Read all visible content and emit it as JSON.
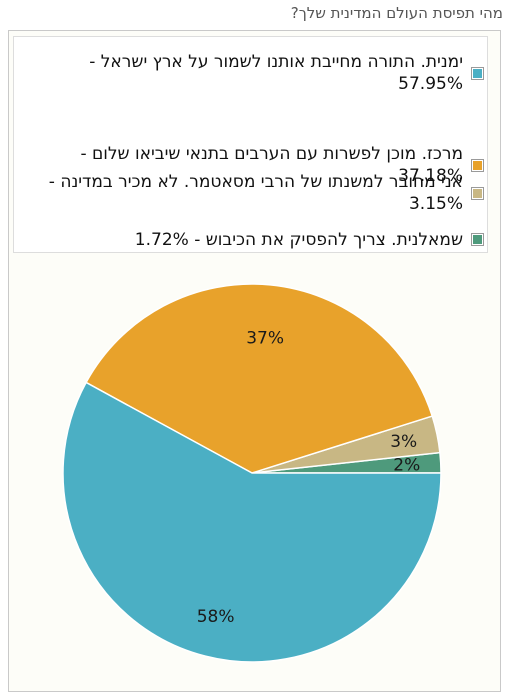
{
  "question": "מהי תפיסת העולם המדינית שלך?",
  "chart_data": {
    "type": "pie",
    "title": "",
    "series": [
      {
        "legend_label": "ימנית. התורה מחייבת אותנו לשמור על ארץ ישראל - 57.95%",
        "slice_label": "58%",
        "value": 57.95,
        "color": "#4bafc4"
      },
      {
        "legend_label": "מרכז. מוכן לפשרות עם הערבים בתנאי שיביאו שלום - 37.18%",
        "slice_label": "37%",
        "value": 37.18,
        "color": "#e8a22b"
      },
      {
        "legend_label": "אני מחובר למשנתו של הרבי מסאטמר. לא מכיר במדינה - 3.15%",
        "slice_label": "3%",
        "value": 3.15,
        "color": "#c8b784"
      },
      {
        "legend_label": "שמאלנית. צריך להפסיק את הכיבוש - 1.72%",
        "slice_label": "2%",
        "value": 1.72,
        "color": "#4e9a7c"
      }
    ],
    "legend_position": "top"
  }
}
